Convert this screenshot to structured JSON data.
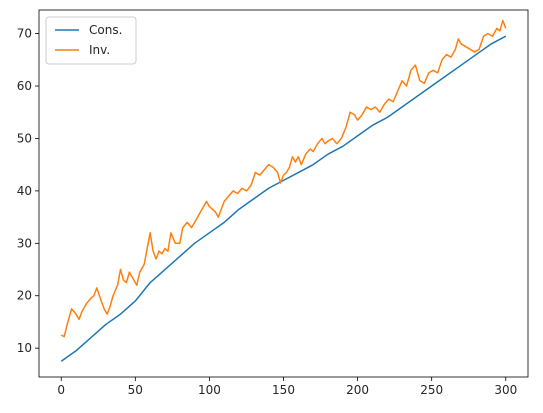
{
  "chart_data": {
    "type": "line",
    "title": "",
    "xlabel": "",
    "ylabel": "",
    "xlim": [
      -15,
      315
    ],
    "ylim": [
      4.5,
      74.5
    ],
    "xticks": [
      0,
      50,
      100,
      150,
      200,
      250,
      300
    ],
    "yticks": [
      10,
      20,
      30,
      40,
      50,
      60,
      70
    ],
    "grid": false,
    "legend_position": "top-left",
    "series": [
      {
        "name": "Cons.",
        "color": "#1f77b4",
        "points": [
          [
            0,
            7.5
          ],
          [
            10,
            9.5
          ],
          [
            20,
            12
          ],
          [
            30,
            14.5
          ],
          [
            40,
            16.5
          ],
          [
            50,
            19
          ],
          [
            60,
            22.5
          ],
          [
            70,
            25
          ],
          [
            80,
            27.5
          ],
          [
            90,
            30
          ],
          [
            100,
            32
          ],
          [
            110,
            34
          ],
          [
            120,
            36.5
          ],
          [
            130,
            38.5
          ],
          [
            140,
            40.5
          ],
          [
            150,
            42
          ],
          [
            160,
            43.5
          ],
          [
            170,
            45
          ],
          [
            180,
            47
          ],
          [
            190,
            48.5
          ],
          [
            200,
            50.5
          ],
          [
            210,
            52.5
          ],
          [
            220,
            54
          ],
          [
            230,
            56
          ],
          [
            240,
            58
          ],
          [
            250,
            60
          ],
          [
            260,
            62
          ],
          [
            270,
            64
          ],
          [
            280,
            66
          ],
          [
            290,
            68
          ],
          [
            300,
            69.5
          ]
        ]
      },
      {
        "name": "Inv.",
        "color": "#ff7f0e",
        "points": [
          [
            0,
            12.5
          ],
          [
            2,
            12.2
          ],
          [
            4,
            14.5
          ],
          [
            7,
            17.5
          ],
          [
            10,
            16.5
          ],
          [
            12,
            15.5
          ],
          [
            14,
            17
          ],
          [
            17,
            18.5
          ],
          [
            20,
            19.5
          ],
          [
            22,
            20
          ],
          [
            24,
            21.5
          ],
          [
            27,
            19
          ],
          [
            29,
            17.5
          ],
          [
            31,
            16.5
          ],
          [
            33,
            18
          ],
          [
            35,
            20
          ],
          [
            38,
            22
          ],
          [
            40,
            25
          ],
          [
            42,
            23
          ],
          [
            44,
            22.5
          ],
          [
            46,
            24.5
          ],
          [
            49,
            23
          ],
          [
            51,
            22
          ],
          [
            53,
            24.5
          ],
          [
            56,
            26
          ],
          [
            58,
            29
          ],
          [
            60,
            32
          ],
          [
            62,
            28.5
          ],
          [
            64,
            27
          ],
          [
            66,
            28.5
          ],
          [
            68,
            28
          ],
          [
            70,
            29
          ],
          [
            72,
            28.5
          ],
          [
            74,
            32
          ],
          [
            77,
            30
          ],
          [
            80,
            30
          ],
          [
            82,
            33
          ],
          [
            85,
            34
          ],
          [
            88,
            33
          ],
          [
            90,
            34
          ],
          [
            93,
            35.5
          ],
          [
            96,
            37
          ],
          [
            98,
            38
          ],
          [
            100,
            37
          ],
          [
            102,
            36.5
          ],
          [
            104,
            36
          ],
          [
            106,
            35
          ],
          [
            108,
            36.5
          ],
          [
            110,
            38
          ],
          [
            113,
            39
          ],
          [
            116,
            40
          ],
          [
            119,
            39.5
          ],
          [
            122,
            40.5
          ],
          [
            125,
            40
          ],
          [
            128,
            41
          ],
          [
            131,
            43.5
          ],
          [
            134,
            43
          ],
          [
            137,
            44
          ],
          [
            140,
            45
          ],
          [
            143,
            44.5
          ],
          [
            146,
            43.5
          ],
          [
            148,
            41.5
          ],
          [
            150,
            43
          ],
          [
            152,
            43.5
          ],
          [
            154,
            44.5
          ],
          [
            156,
            46.5
          ],
          [
            158,
            45.5
          ],
          [
            160,
            46.5
          ],
          [
            162,
            45
          ],
          [
            165,
            47
          ],
          [
            168,
            48
          ],
          [
            170,
            47.5
          ],
          [
            173,
            49
          ],
          [
            176,
            50
          ],
          [
            178,
            49
          ],
          [
            180,
            49.5
          ],
          [
            183,
            50
          ],
          [
            186,
            49
          ],
          [
            189,
            50
          ],
          [
            192,
            52
          ],
          [
            195,
            55
          ],
          [
            198,
            54.5
          ],
          [
            200,
            53.5
          ],
          [
            203,
            54.5
          ],
          [
            206,
            56
          ],
          [
            209,
            55.5
          ],
          [
            212,
            56
          ],
          [
            215,
            55
          ],
          [
            218,
            56.5
          ],
          [
            221,
            57.5
          ],
          [
            224,
            57
          ],
          [
            227,
            59
          ],
          [
            230,
            61
          ],
          [
            233,
            60
          ],
          [
            236,
            63
          ],
          [
            239,
            64
          ],
          [
            242,
            61
          ],
          [
            245,
            60.5
          ],
          [
            248,
            62.5
          ],
          [
            251,
            63
          ],
          [
            254,
            62.5
          ],
          [
            257,
            65
          ],
          [
            260,
            66
          ],
          [
            263,
            65.5
          ],
          [
            266,
            67
          ],
          [
            268,
            69
          ],
          [
            270,
            68
          ],
          [
            273,
            67.5
          ],
          [
            276,
            67
          ],
          [
            279,
            66.5
          ],
          [
            282,
            67
          ],
          [
            285,
            69.5
          ],
          [
            288,
            70
          ],
          [
            291,
            69.5
          ],
          [
            294,
            71
          ],
          [
            296,
            70.5
          ],
          [
            298,
            72.5
          ],
          [
            300,
            71
          ]
        ]
      }
    ]
  }
}
